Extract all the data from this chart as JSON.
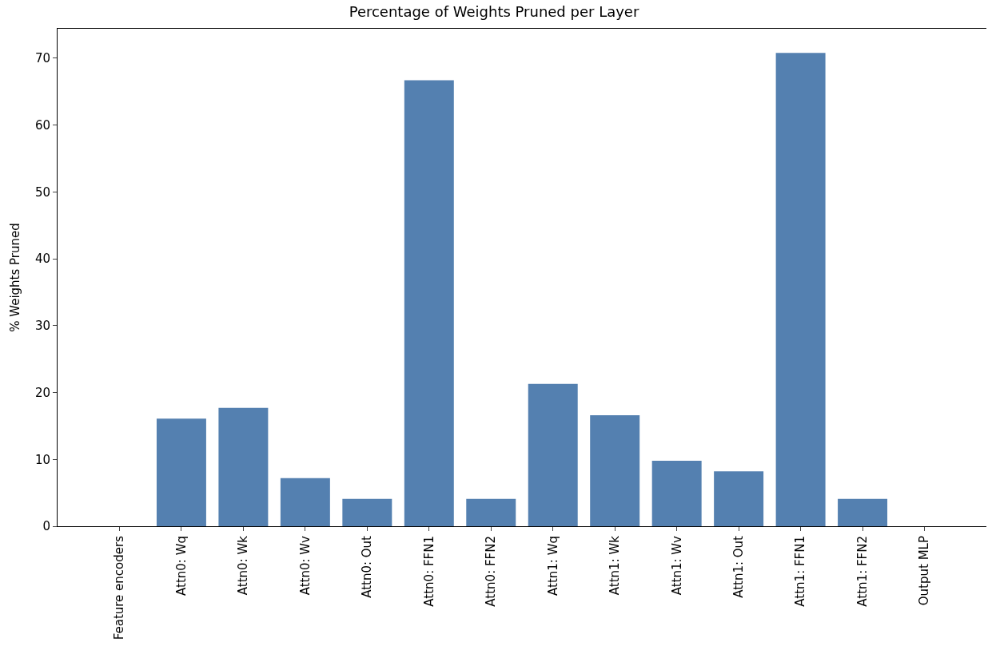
{
  "chart_data": {
    "type": "bar",
    "title": "Percentage of Weights Pruned per Layer",
    "ylabel": "% Weights Pruned",
    "categories": [
      "Feature encoders",
      "Attn0: Wq",
      "Attn0: Wk",
      "Attn0: Wv",
      "Attn0: Out",
      "Attn0: FFN1",
      "Attn0: FFN2",
      "Attn1: Wq",
      "Attn1: Wk",
      "Attn1: Wv",
      "Attn1: Out",
      "Attn1: FFN1",
      "Attn1: FFN2",
      "Output MLP"
    ],
    "values": [
      0,
      16.1,
      17.7,
      7.2,
      4.1,
      66.7,
      4.1,
      21.3,
      16.6,
      9.8,
      8.2,
      70.8,
      4.1,
      0
    ],
    "color": "#5480b0",
    "ylim": [
      0,
      74.4
    ],
    "yticks": [
      0,
      10,
      20,
      30,
      40,
      50,
      60,
      70
    ]
  }
}
